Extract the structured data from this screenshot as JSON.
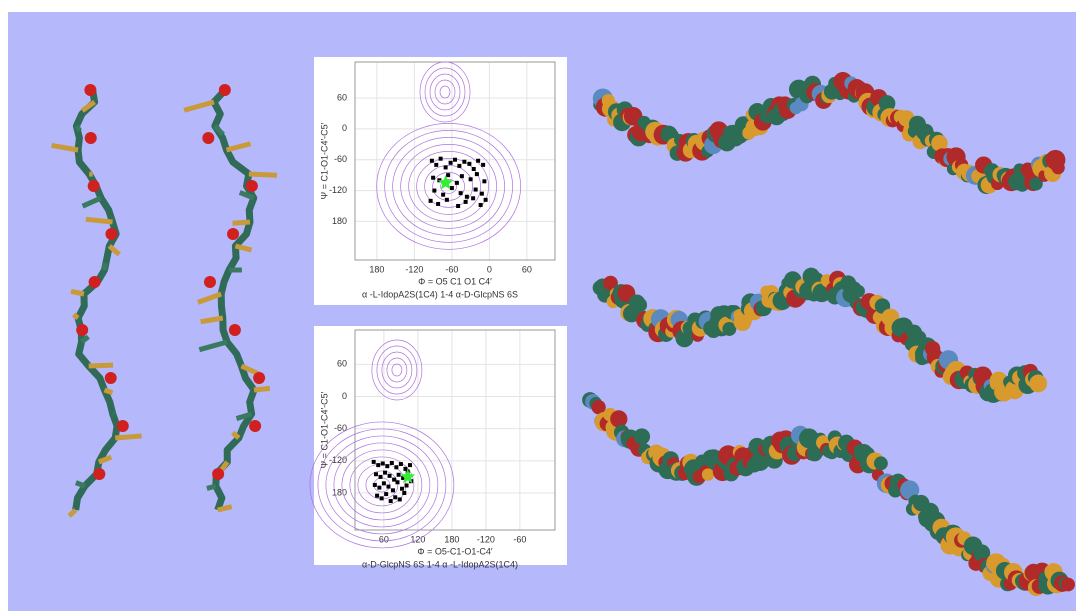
{
  "chart_data": [
    {
      "type": "scatter",
      "x_label": "Φ = O5 C1 O1 C4′",
      "y_label": "Ψ = C1-O1-C4′-C5′",
      "caption": "α -L-IdopA2S(1C4) 1-4 α-D-GlcpNS 6S",
      "xlim": [
        -215,
        105
      ],
      "ylim": [
        -255,
        130
      ],
      "xticks": [
        {
          "value": -180,
          "label": "180"
        },
        -120,
        -60,
        0,
        60
      ],
      "yticks": [
        60,
        0,
        -60,
        -120,
        {
          "value": -180,
          "label": "180"
        }
      ],
      "color": "#000000",
      "x": [
        -92,
        -85,
        -78,
        -70,
        -62,
        -55,
        -48,
        -40,
        -32,
        -25,
        -18,
        -10,
        -90,
        -80,
        -66,
        -52,
        -44,
        -30,
        -20,
        -8,
        -88,
        -74,
        -60,
        -46,
        -36,
        -22,
        -12,
        -94,
        -82,
        -68,
        -50,
        -38,
        -26,
        -14,
        -6
      ],
      "y": [
        -62,
        -70,
        -58,
        -75,
        -66,
        -60,
        -72,
        -64,
        -68,
        -78,
        -62,
        -70,
        -95,
        -100,
        -90,
        -105,
        -92,
        -98,
        -88,
        -102,
        -120,
        -128,
        -115,
        -125,
        -132,
        -118,
        -126,
        -140,
        -146,
        -138,
        -150,
        -142,
        -135,
        -148,
        -138
      ],
      "highlight": {
        "x": -70,
        "y": -105,
        "color": "#33ee33"
      }
    },
    {
      "type": "scatter",
      "x_label": "Φ = O5-C1-O1-C4′",
      "y_label": "Ψ = C1-O1-C4′-C5′",
      "caption": "α-D-GlcpNS 6S 1-4 α -L-IdopA2S(1C4)",
      "xlim": [
        9,
        362
      ],
      "ylim": [
        -249,
        124
      ],
      "xticks": [
        60,
        120,
        180,
        {
          "value": 240,
          "label": "-120"
        },
        {
          "value": 300,
          "label": "-60"
        }
      ],
      "yticks": [
        60,
        0,
        -60,
        -120,
        {
          "value": -180,
          "label": "180"
        }
      ],
      "color": "#000000",
      "x": [
        42,
        50,
        58,
        66,
        74,
        82,
        90,
        98,
        106,
        46,
        54,
        62,
        70,
        78,
        86,
        94,
        102,
        44,
        52,
        60,
        68,
        76,
        84,
        92,
        100,
        108,
        48,
        56,
        64,
        72,
        80,
        88,
        96
      ],
      "y": [
        -122,
        -128,
        -125,
        -130,
        -124,
        -132,
        -126,
        -135,
        -128,
        -145,
        -150,
        -142,
        -148,
        -155,
        -146,
        -152,
        -140,
        -165,
        -170,
        -162,
        -168,
        -175,
        -160,
        -172,
        -166,
        -158,
        -185,
        -190,
        -182,
        -195,
        -188,
        -192,
        -180
      ],
      "highlight": {
        "x": 102,
        "y": -150,
        "color": "#33ee33"
      }
    }
  ]
}
